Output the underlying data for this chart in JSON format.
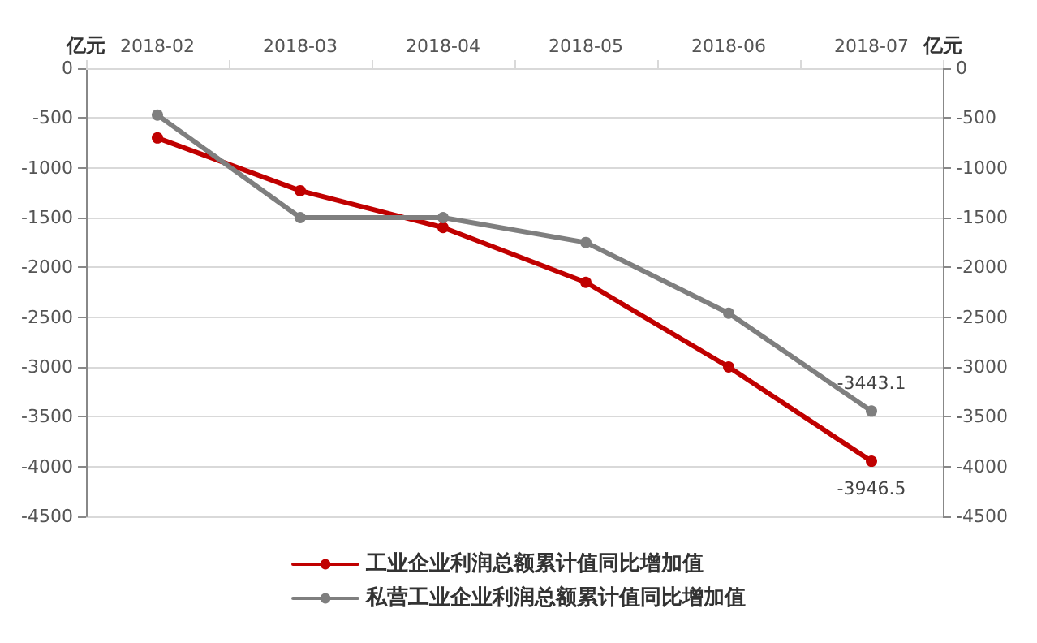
{
  "chart_data": {
    "type": "line",
    "ylabel": "亿元",
    "y2label": "亿元",
    "categories": [
      "2018-02",
      "2018-03",
      "2018-04",
      "2018-05",
      "2018-06",
      "2018-07"
    ],
    "series": [
      {
        "name": "工业企业利润总额累计值同比增加值",
        "color": "#c00000",
        "values": [
          -700,
          -1230,
          -1600,
          -2150,
          -3000,
          -3946.5
        ],
        "value_labels": [
          null,
          null,
          null,
          null,
          null,
          "-3946.5"
        ]
      },
      {
        "name": "私营工业企业利润总额累计值同比增加值",
        "color": "#7f7f7f",
        "values": [
          -470,
          -1500,
          -1500,
          -1750,
          -2460,
          -3443.1
        ],
        "value_labels": [
          null,
          null,
          null,
          null,
          null,
          "-3443.1"
        ]
      }
    ],
    "ylim": [
      -4500,
      0
    ],
    "yticks": [
      -4500,
      -4000,
      -3500,
      -3000,
      -2500,
      -2000,
      -1500,
      -1000,
      -500,
      0
    ],
    "y2lim": [
      -4500,
      0
    ],
    "y2ticks": [
      -4500,
      -4000,
      -3500,
      -3000,
      -2500,
      -2000,
      -1500,
      -1000,
      -500,
      0
    ],
    "grid": "y",
    "legend": "bottom",
    "marker": "circle",
    "line_style": "solid"
  }
}
